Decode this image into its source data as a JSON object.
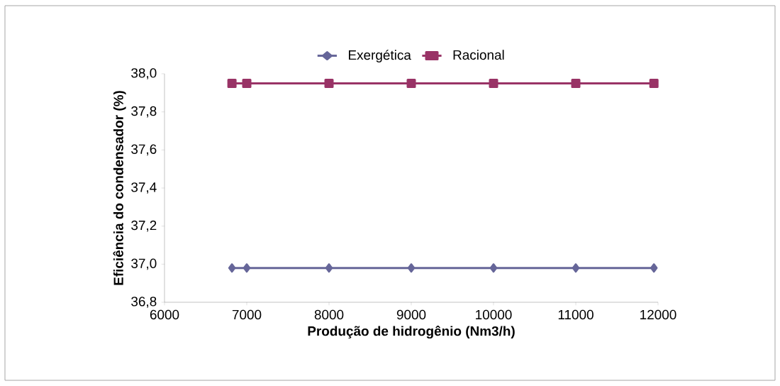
{
  "chart_data": {
    "type": "line",
    "xlabel": "Produção de hidrogênio (Nm3/h)",
    "ylabel": "Eficiência do condensador (%)",
    "x": [
      6820,
      7000,
      8000,
      9000,
      10000,
      11000,
      11950
    ],
    "series": [
      {
        "name": "Exergética",
        "color": "#666699",
        "marker": "diamond",
        "values": [
          36.98,
          36.98,
          36.98,
          36.98,
          36.98,
          36.98,
          36.98
        ]
      },
      {
        "name": "Racional",
        "color": "#993366",
        "marker": "square",
        "values": [
          37.95,
          37.95,
          37.95,
          37.95,
          37.95,
          37.95,
          37.95
        ]
      }
    ],
    "xlim": [
      6000,
      12000
    ],
    "xticks": [
      6000,
      7000,
      8000,
      9000,
      10000,
      11000,
      12000
    ],
    "ylim": [
      36.8,
      38.0
    ],
    "yticks": [
      {
        "value": 36.8,
        "label": "36,8"
      },
      {
        "value": 37.0,
        "label": "37,0"
      },
      {
        "value": 37.2,
        "label": "37,2"
      },
      {
        "value": 37.4,
        "label": "37,4"
      },
      {
        "value": 37.6,
        "label": "37,6"
      },
      {
        "value": 37.8,
        "label": "37,8"
      },
      {
        "value": 38.0,
        "label": "38,0"
      }
    ],
    "grid": false,
    "legend": "top",
    "line_style": "solid"
  }
}
